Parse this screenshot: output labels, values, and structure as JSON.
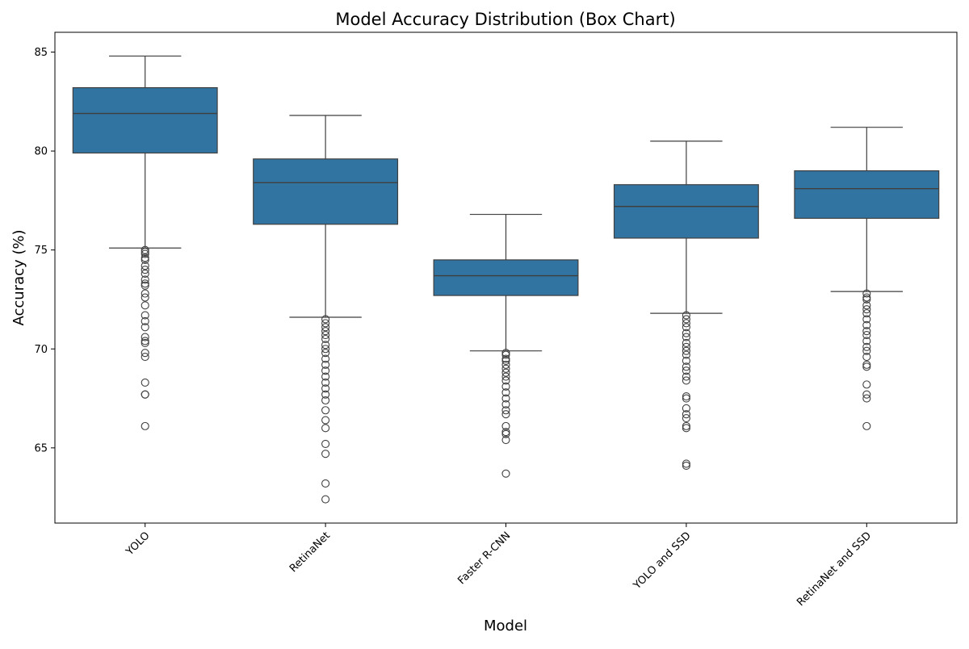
{
  "chart_data": {
    "type": "box",
    "title": "Model Accuracy Distribution (Box Chart)",
    "xlabel": "Model",
    "ylabel": "Accuracy (%)",
    "ylim": [
      61.2,
      86.0
    ],
    "yticks": [
      65,
      70,
      75,
      80,
      85
    ],
    "ytick_labels": [
      "65",
      "70",
      "75",
      "80",
      "85"
    ],
    "grid": false,
    "box_color": "#3274a1",
    "line_color": "#3f3f3f",
    "categories": [
      "YOLO",
      "RetinaNet",
      "Faster R-CNN",
      "YOLO and SSD",
      "RetinaNet and SSD"
    ],
    "boxes": [
      {
        "label": "YOLO",
        "whisker_low": 75.1,
        "q1": 79.9,
        "median": 81.9,
        "q3": 83.2,
        "whisker_high": 84.8,
        "outliers": [
          75.0,
          74.9,
          74.8,
          74.6,
          74.5,
          74.2,
          74.0,
          73.8,
          73.5,
          73.3,
          73.2,
          72.8,
          72.6,
          72.2,
          71.7,
          71.4,
          71.1,
          70.6,
          70.4,
          70.3,
          69.8,
          69.6,
          68.3,
          67.7,
          67.7,
          66.1
        ]
      },
      {
        "label": "RetinaNet",
        "whisker_low": 71.6,
        "q1": 76.3,
        "median": 78.4,
        "q3": 79.6,
        "whisker_high": 81.8,
        "outliers": [
          71.5,
          71.3,
          71.1,
          70.9,
          70.7,
          70.5,
          70.2,
          70.0,
          69.8,
          69.5,
          69.2,
          68.9,
          68.6,
          68.3,
          68.0,
          67.7,
          67.4,
          66.9,
          66.4,
          66.0,
          65.2,
          64.7,
          63.2,
          62.4
        ]
      },
      {
        "label": "Faster R-CNN",
        "whisker_low": 69.9,
        "q1": 72.7,
        "median": 73.7,
        "q3": 74.5,
        "whisker_high": 76.8,
        "outliers": [
          69.8,
          69.7,
          69.5,
          69.4,
          69.2,
          69.0,
          68.8,
          68.6,
          68.4,
          68.1,
          67.8,
          67.5,
          67.2,
          66.9,
          66.7,
          66.1,
          65.8,
          65.7,
          65.4,
          63.7
        ]
      },
      {
        "label": "YOLO and SSD",
        "whisker_low": 71.8,
        "q1": 75.6,
        "median": 77.2,
        "q3": 78.3,
        "whisker_high": 80.5,
        "outliers": [
          71.7,
          71.5,
          71.3,
          71.1,
          70.8,
          70.6,
          70.3,
          70.1,
          69.9,
          69.7,
          69.4,
          69.1,
          68.9,
          68.6,
          68.4,
          67.6,
          67.5,
          67.0,
          66.7,
          66.5,
          66.1,
          66.0,
          64.2,
          64.1
        ]
      },
      {
        "label": "RetinaNet and SSD",
        "whisker_low": 72.9,
        "q1": 76.6,
        "median": 78.1,
        "q3": 79.0,
        "whisker_high": 81.2,
        "outliers": [
          72.8,
          72.6,
          72.5,
          72.2,
          72.0,
          71.8,
          71.5,
          71.2,
          70.9,
          70.7,
          70.4,
          70.1,
          69.9,
          69.6,
          69.2,
          69.1,
          68.2,
          67.7,
          67.5,
          66.1
        ]
      }
    ]
  }
}
